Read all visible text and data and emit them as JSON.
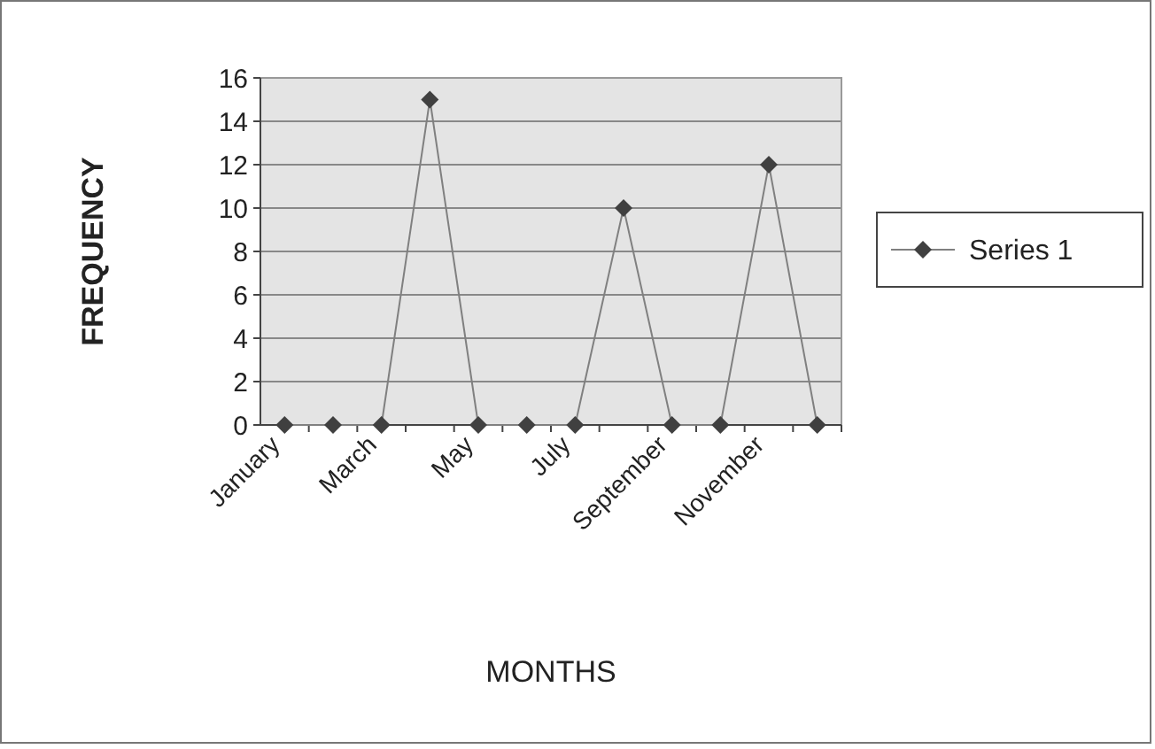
{
  "chart_data": {
    "type": "line",
    "xlabel": "MONTHS",
    "ylabel": "FREQUENCY",
    "categories": [
      "January",
      null,
      "March",
      null,
      "May",
      null,
      "July",
      null,
      "September",
      null,
      "November",
      null
    ],
    "series": [
      {
        "name": "Series 1",
        "color": "#404040",
        "values": [
          0,
          0,
          0,
          15,
          0,
          0,
          0,
          10,
          0,
          0,
          12,
          0
        ]
      }
    ],
    "ylim": [
      0,
      16
    ],
    "yticks": [
      0,
      2,
      4,
      6,
      8,
      10,
      12,
      14,
      16
    ],
    "grid": "y",
    "legend": "right",
    "marker": "diamond",
    "line_style": "solid"
  }
}
